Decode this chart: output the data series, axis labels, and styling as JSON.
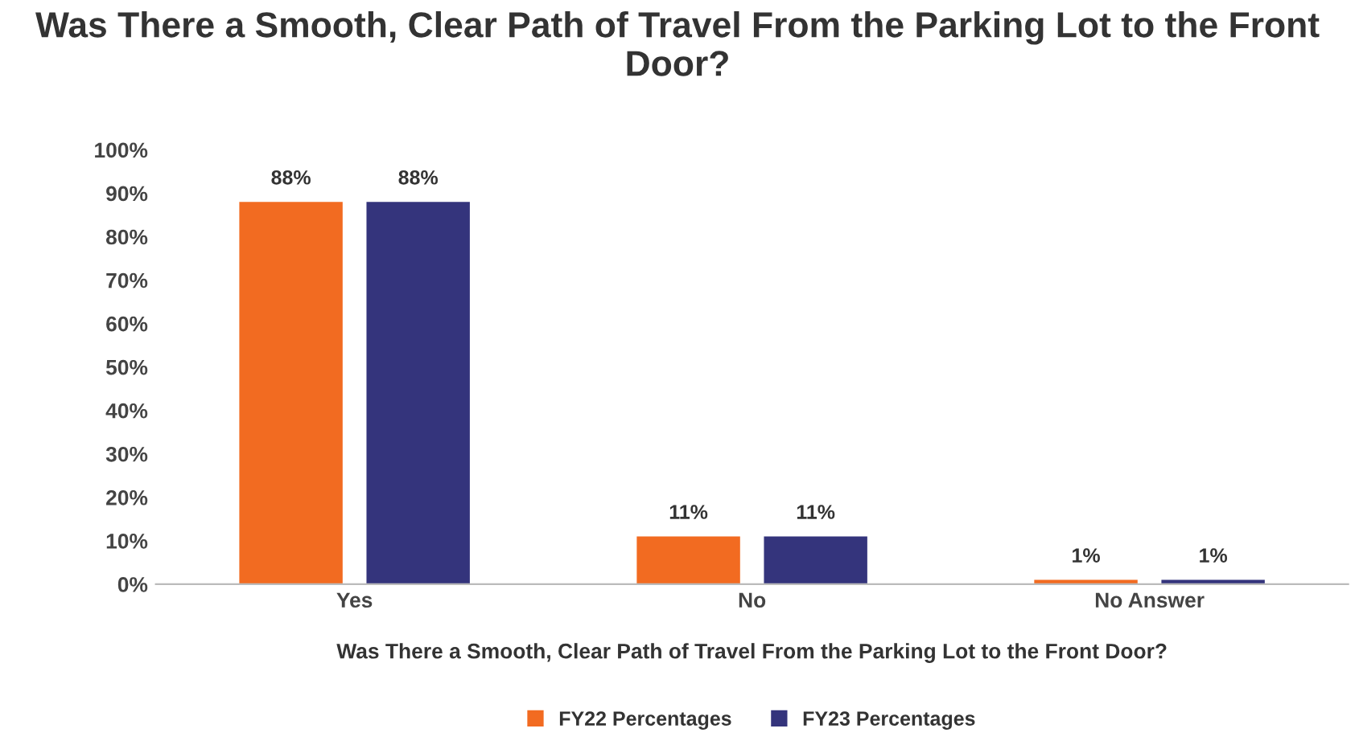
{
  "chart_data": {
    "type": "bar",
    "title": "Was There a Smooth, Clear Path of Travel From the Parking Lot to the Front Door?",
    "xlabel": "Was There a Smooth, Clear Path of Travel From the Parking Lot to the Front Door?",
    "categories": [
      "Yes",
      "No",
      "No Answer"
    ],
    "series": [
      {
        "name": "FY22 Percentages",
        "color": "#f26b21",
        "values": [
          88,
          11,
          1
        ]
      },
      {
        "name": "FY23 Percentages",
        "color": "#34347c",
        "values": [
          88,
          11,
          1
        ]
      }
    ],
    "ylim": [
      0,
      100
    ],
    "yticks": [
      {
        "value": 0,
        "label": "0%"
      },
      {
        "value": 10,
        "label": "10%"
      },
      {
        "value": 20,
        "label": "20%"
      },
      {
        "value": 30,
        "label": "30%"
      },
      {
        "value": 40,
        "label": "40%"
      },
      {
        "value": 50,
        "label": "50%"
      },
      {
        "value": 60,
        "label": "60%"
      },
      {
        "value": 70,
        "label": "70%"
      },
      {
        "value": 80,
        "label": "80%"
      },
      {
        "value": 90,
        "label": "90%"
      },
      {
        "value": 100,
        "label": "100%"
      }
    ],
    "value_labels": [
      [
        "88%",
        "11%",
        "1%"
      ],
      [
        "88%",
        "11%",
        "1%"
      ]
    ],
    "grid": false,
    "legend": "bottom"
  }
}
